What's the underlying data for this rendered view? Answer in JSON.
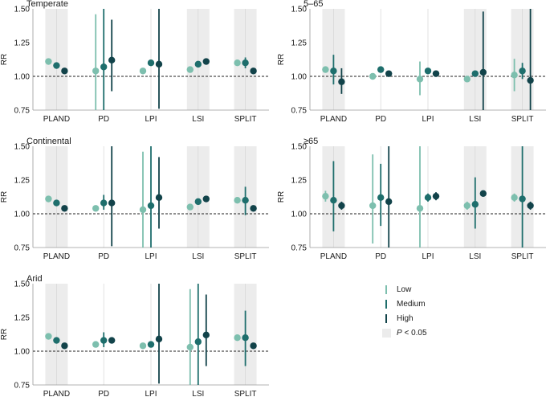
{
  "legend": {
    "items": [
      {
        "label": "Low",
        "color": "#7dbfae"
      },
      {
        "label": "Medium",
        "color": "#1e6e6c"
      },
      {
        "label": "High",
        "color": "#12434a"
      }
    ],
    "shade_label_p": "P",
    "shade_label_rest": " < 0.05"
  },
  "chart_data": [
    {
      "type": "scatter",
      "title": "Temperate",
      "ylabel": "RR",
      "ylim": [
        0.75,
        1.5
      ],
      "yticks": [
        "0.75",
        "1.00",
        "1.25",
        "1.50"
      ],
      "reference_line": 1.0,
      "categories": [
        "PLAND",
        "PD",
        "LPI",
        "LSI",
        "SPLIT"
      ],
      "shaded": [
        "PLAND",
        "LSI",
        "SPLIT"
      ],
      "series": [
        {
          "name": "Low",
          "values": [
            1.11,
            1.04,
            1.04,
            1.05,
            1.1
          ],
          "lower": [
            1.09,
            0.75,
            1.02,
            1.03,
            1.08
          ],
          "upper": [
            1.13,
            1.46,
            1.06,
            1.07,
            1.12
          ]
        },
        {
          "name": "Medium",
          "values": [
            1.08,
            1.07,
            1.1,
            1.09,
            1.1
          ],
          "lower": [
            1.06,
            0.75,
            1.08,
            1.07,
            1.06
          ],
          "upper": [
            1.1,
            1.5,
            1.12,
            1.11,
            1.14
          ]
        },
        {
          "name": "High",
          "values": [
            1.04,
            1.12,
            1.09,
            1.11,
            1.04
          ],
          "lower": [
            1.02,
            0.89,
            0.76,
            1.09,
            1.02
          ],
          "upper": [
            1.06,
            1.42,
            1.5,
            1.13,
            1.06
          ]
        }
      ]
    },
    {
      "type": "scatter",
      "title": "5–65",
      "ylabel": "RR",
      "ylim": [
        0.75,
        1.5
      ],
      "yticks": [
        "0.75",
        "1.00",
        "1.25",
        "1.50"
      ],
      "reference_line": 1.0,
      "categories": [
        "PLAND",
        "PD",
        "LPI",
        "LSI",
        "SPLIT"
      ],
      "shaded": [
        "PLAND",
        "LSI",
        "SPLIT"
      ],
      "series": [
        {
          "name": "Low",
          "values": [
            1.05,
            1.0,
            0.98,
            0.98,
            1.01
          ],
          "lower": [
            1.03,
            0.98,
            0.86,
            0.96,
            0.89
          ],
          "upper": [
            1.07,
            1.02,
            1.11,
            1.0,
            1.13
          ]
        },
        {
          "name": "Medium",
          "values": [
            1.04,
            1.05,
            1.04,
            1.02,
            1.04
          ],
          "lower": [
            0.94,
            1.03,
            1.02,
            1.0,
            0.98
          ],
          "upper": [
            1.16,
            1.07,
            1.06,
            1.04,
            1.1
          ]
        },
        {
          "name": "High",
          "values": [
            0.96,
            1.02,
            1.02,
            1.03,
            0.97
          ],
          "lower": [
            0.87,
            1.0,
            1.0,
            0.75,
            0.75
          ],
          "upper": [
            1.06,
            1.04,
            1.04,
            1.48,
            1.5
          ]
        }
      ]
    },
    {
      "type": "scatter",
      "title": "Continental",
      "ylabel": "RR",
      "ylim": [
        0.75,
        1.5
      ],
      "yticks": [
        "0.75",
        "1.00",
        "1.25",
        "1.50"
      ],
      "reference_line": 1.0,
      "categories": [
        "PLAND",
        "PD",
        "LPI",
        "LSI",
        "SPLIT"
      ],
      "shaded": [
        "PLAND",
        "LSI",
        "SPLIT"
      ],
      "series": [
        {
          "name": "Low",
          "values": [
            1.11,
            1.04,
            1.03,
            1.05,
            1.1
          ],
          "lower": [
            1.09,
            1.02,
            0.75,
            1.03,
            1.08
          ],
          "upper": [
            1.13,
            1.06,
            1.46,
            1.07,
            1.12
          ]
        },
        {
          "name": "Medium",
          "values": [
            1.08,
            1.08,
            1.06,
            1.09,
            1.1
          ],
          "lower": [
            1.06,
            1.03,
            0.75,
            1.07,
            0.99
          ],
          "upper": [
            1.1,
            1.14,
            1.5,
            1.11,
            1.2
          ]
        },
        {
          "name": "High",
          "values": [
            1.04,
            1.08,
            1.12,
            1.11,
            1.04
          ],
          "lower": [
            1.02,
            0.76,
            0.89,
            1.09,
            1.02
          ],
          "upper": [
            1.06,
            1.5,
            1.42,
            1.13,
            1.06
          ]
        }
      ]
    },
    {
      "type": "scatter",
      "title": "≥65",
      "ylabel": "RR",
      "ylim": [
        0.75,
        1.5
      ],
      "yticks": [
        "0.75",
        "1.00",
        "1.25",
        "1.50"
      ],
      "reference_line": 1.0,
      "categories": [
        "PLAND",
        "PD",
        "LPI",
        "LSI",
        "SPLIT"
      ],
      "shaded": [
        "PLAND",
        "LSI",
        "SPLIT"
      ],
      "series": [
        {
          "name": "Low",
          "values": [
            1.13,
            1.06,
            1.04,
            1.06,
            1.12
          ],
          "lower": [
            1.09,
            0.78,
            0.75,
            1.03,
            1.09
          ],
          "upper": [
            1.17,
            1.44,
            1.5,
            1.09,
            1.15
          ]
        },
        {
          "name": "Medium",
          "values": [
            1.1,
            1.12,
            1.12,
            1.07,
            1.11
          ],
          "lower": [
            0.87,
            0.91,
            1.09,
            0.89,
            0.75
          ],
          "upper": [
            1.39,
            1.37,
            1.15,
            1.27,
            1.5
          ]
        },
        {
          "name": "High",
          "values": [
            1.06,
            1.09,
            1.13,
            1.15,
            1.06
          ],
          "lower": [
            1.03,
            0.75,
            1.1,
            1.13,
            1.03
          ],
          "upper": [
            1.09,
            1.5,
            1.16,
            1.17,
            1.09
          ]
        }
      ]
    },
    {
      "type": "scatter",
      "title": "Arid",
      "ylabel": "RR",
      "ylim": [
        0.75,
        1.5
      ],
      "yticks": [
        "0.75",
        "1.00",
        "1.25",
        "1.50"
      ],
      "reference_line": 1.0,
      "categories": [
        "PLAND",
        "PD",
        "LPI",
        "LSI",
        "SPLIT"
      ],
      "shaded": [
        "PLAND",
        "SPLIT"
      ],
      "series": [
        {
          "name": "Low",
          "values": [
            1.11,
            1.05,
            1.04,
            1.03,
            1.1
          ],
          "lower": [
            1.09,
            1.03,
            1.02,
            0.75,
            1.08
          ],
          "upper": [
            1.13,
            1.07,
            1.06,
            1.46,
            1.12
          ]
        },
        {
          "name": "Medium",
          "values": [
            1.08,
            1.08,
            1.05,
            1.07,
            1.1
          ],
          "lower": [
            1.06,
            1.03,
            1.03,
            0.75,
            0.89
          ],
          "upper": [
            1.1,
            1.14,
            1.07,
            1.5,
            1.3
          ]
        },
        {
          "name": "High",
          "values": [
            1.04,
            1.08,
            1.09,
            1.12,
            1.04
          ],
          "lower": [
            1.02,
            1.06,
            0.76,
            0.89,
            1.02
          ],
          "upper": [
            1.06,
            1.1,
            1.5,
            1.42,
            1.06
          ]
        }
      ]
    }
  ]
}
